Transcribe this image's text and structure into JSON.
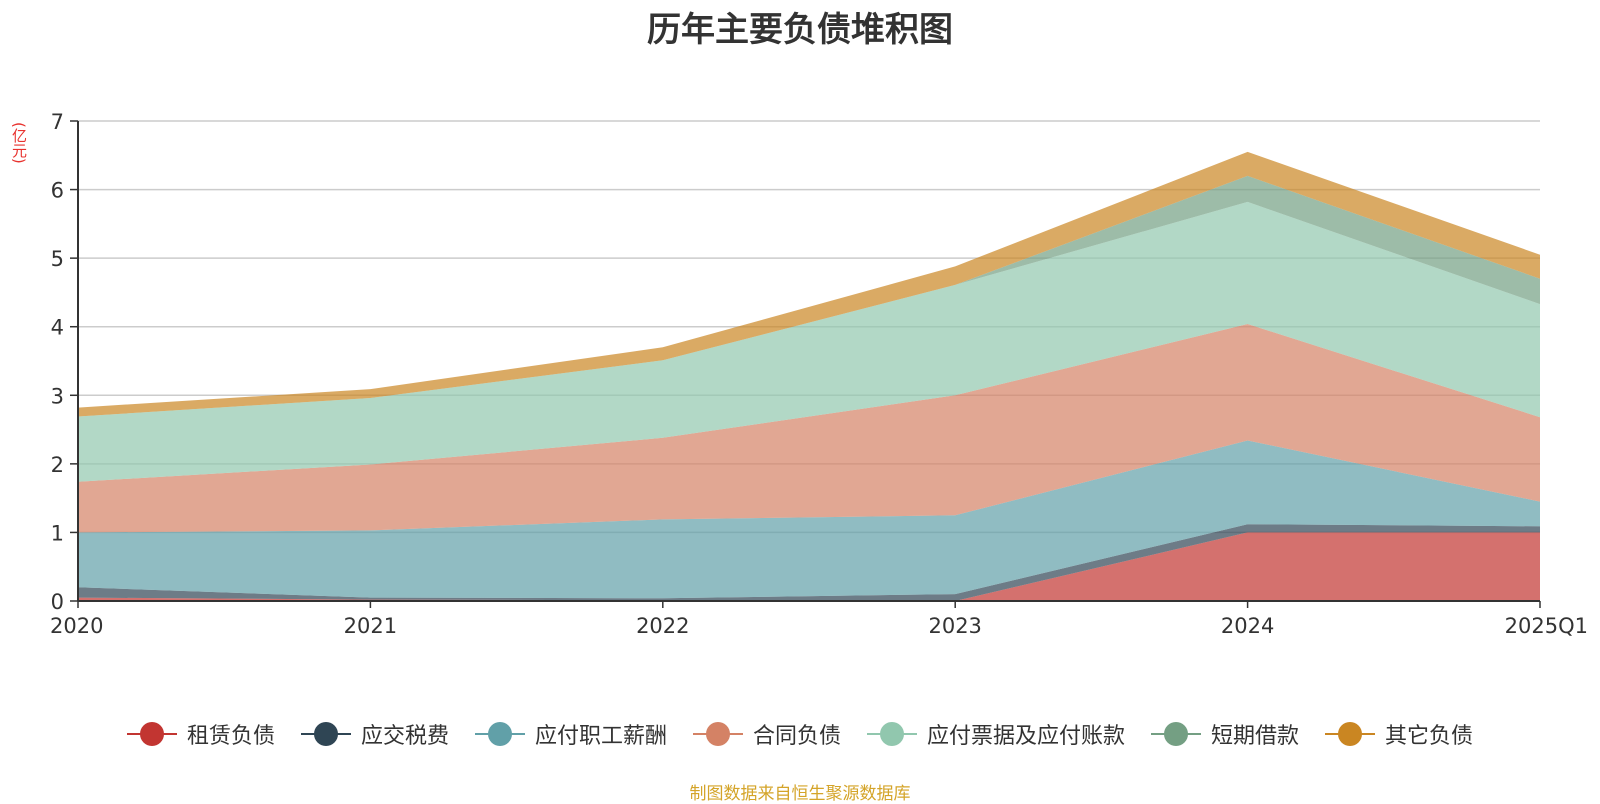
{
  "chart_data": {
    "type": "area",
    "title": "历年主要负债堆积图",
    "unit_label": "(亿元)",
    "categories": [
      "2020",
      "2021",
      "2022",
      "2023",
      "2024",
      "2025Q1"
    ],
    "ylim": [
      0,
      7
    ],
    "yticks": [
      0,
      1,
      2,
      3,
      4,
      5,
      6,
      7
    ],
    "grid": true,
    "stacked": true,
    "legend_position": "bottom",
    "series": [
      {
        "name": "租赁负债",
        "color": "#c23531",
        "values": [
          0.05,
          0.02,
          0.01,
          0.0,
          1.0,
          1.0
        ]
      },
      {
        "name": "应交税费",
        "color": "#2f4554",
        "values": [
          0.15,
          0.03,
          0.03,
          0.1,
          0.12,
          0.09
        ]
      },
      {
        "name": "应付职工薪酬",
        "color": "#61a0a8",
        "values": [
          0.8,
          0.98,
          1.15,
          1.15,
          1.22,
          0.36
        ]
      },
      {
        "name": "合同负债",
        "color": "#d48265",
        "values": [
          0.74,
          0.96,
          1.19,
          1.75,
          1.7,
          1.23
        ]
      },
      {
        "name": "应付票据及应付账款",
        "color": "#91c7ae",
        "values": [
          0.95,
          0.97,
          1.13,
          1.61,
          1.78,
          1.65
        ]
      },
      {
        "name": "短期借款",
        "color": "#749f83",
        "values": [
          0.0,
          0.0,
          0.0,
          0.0,
          0.38,
          0.37
        ]
      },
      {
        "name": "其它负债",
        "color": "#ca8622",
        "values": [
          0.13,
          0.13,
          0.19,
          0.27,
          0.35,
          0.35
        ]
      }
    ],
    "source_note": "制图数据来自恒生聚源数据库"
  }
}
